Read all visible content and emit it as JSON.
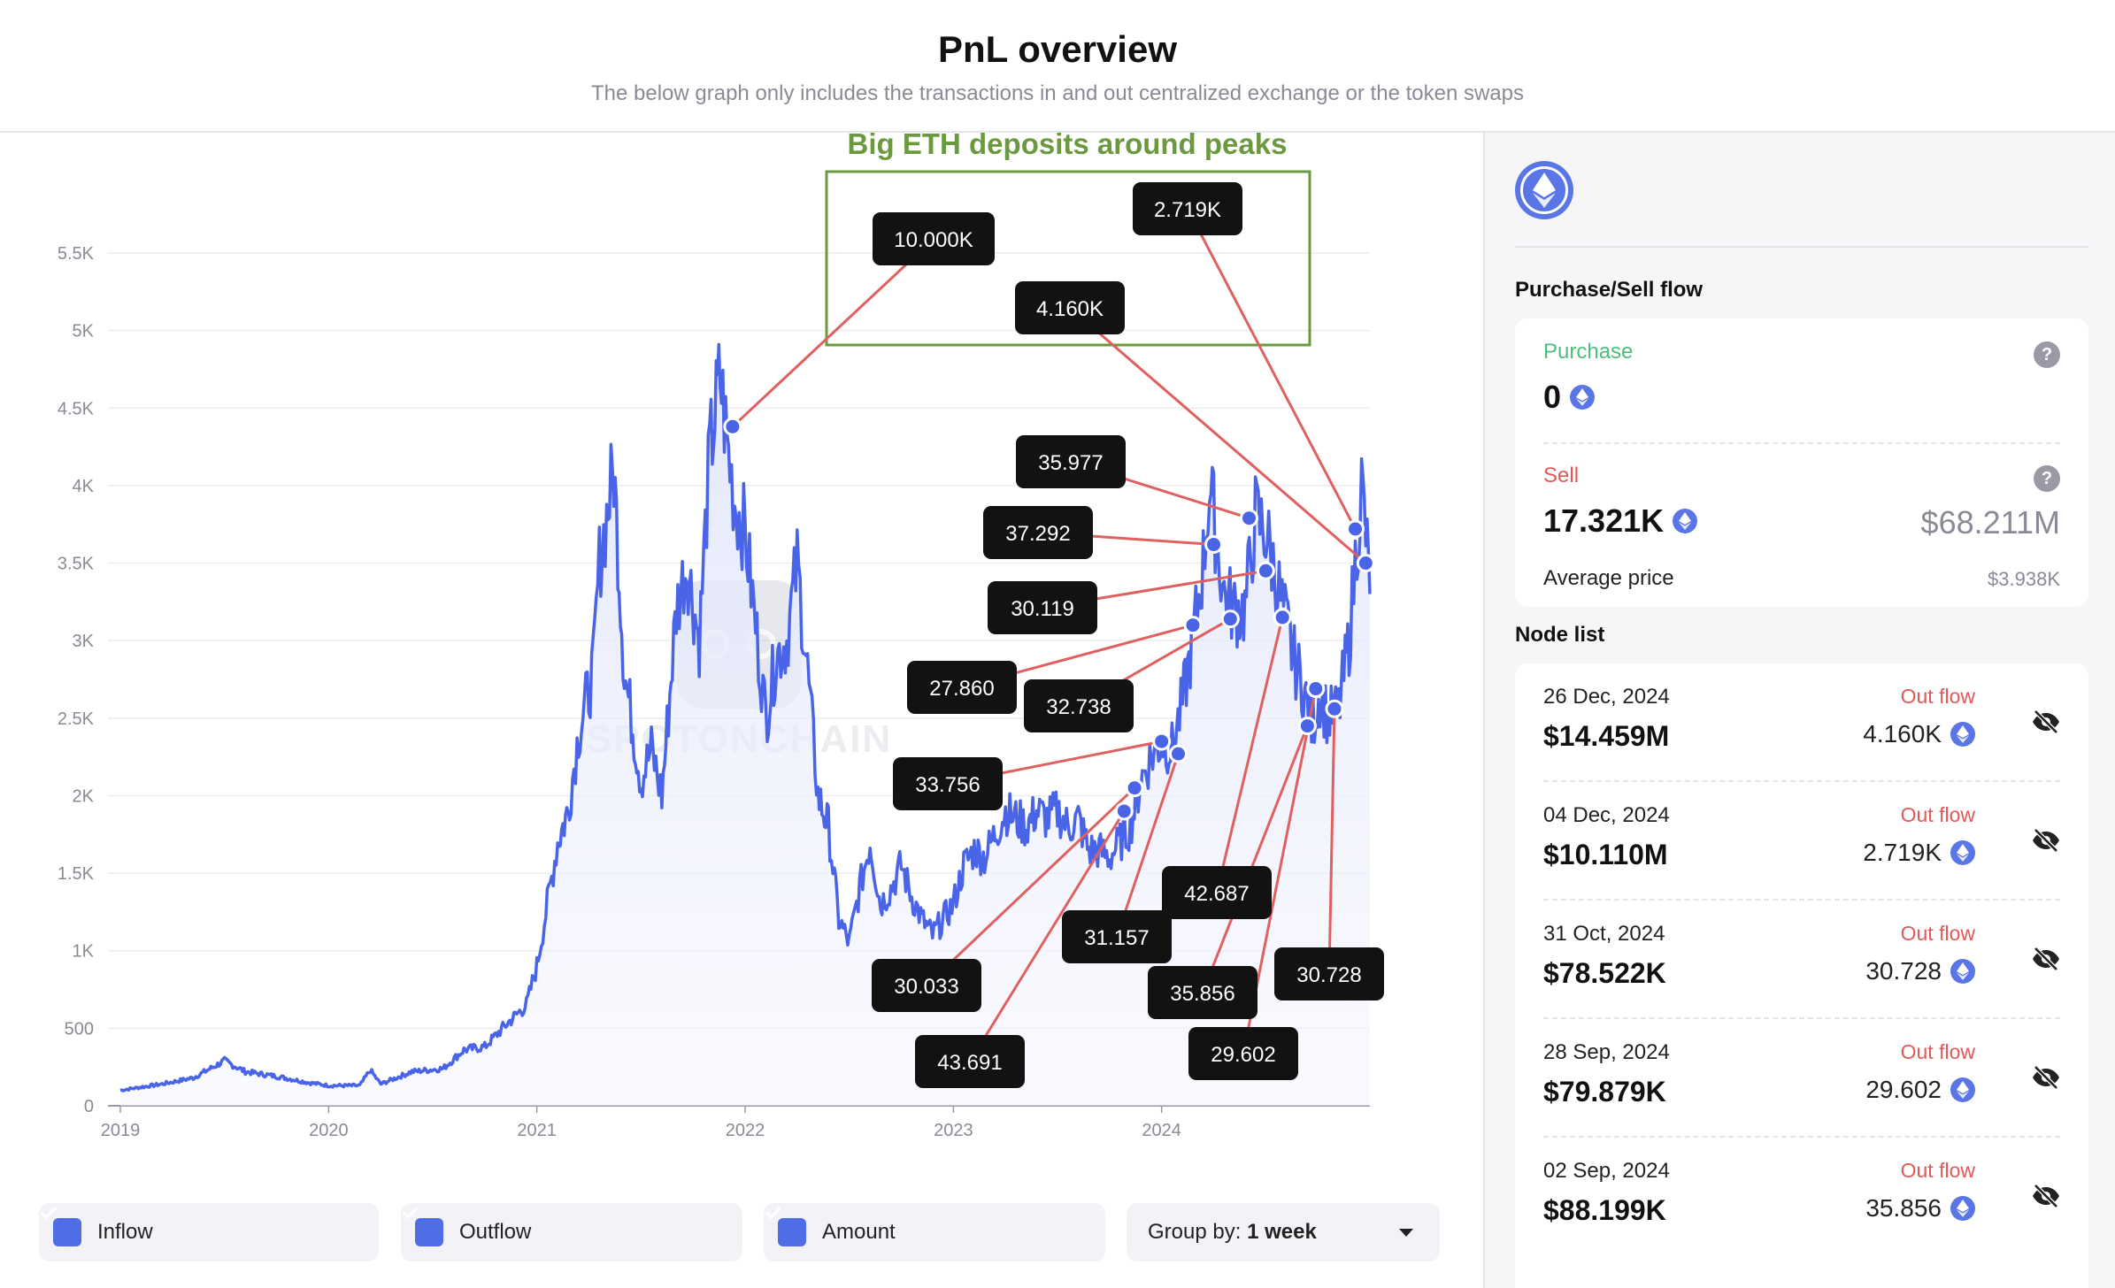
{
  "header": {
    "title": "PnL overview",
    "subtitle": "The below graph only includes the transactions in and out centralized exchange or the token swaps"
  },
  "annotation": {
    "text": "Big ETH deposits around peaks",
    "box_color": "#6b9a3e"
  },
  "watermark": "SPOTONCHAIN",
  "chart_data": {
    "type": "area",
    "title": "",
    "xlabel": "",
    "ylabel": "",
    "ylim": [
      0,
      5500
    ],
    "xlim": [
      2019,
      2025.0
    ],
    "y_ticks": [
      "0",
      "500",
      "1K",
      "1.5K",
      "2K",
      "2.5K",
      "3K",
      "3.5K",
      "4K",
      "4.5K",
      "5K",
      "5.5K"
    ],
    "y_tick_values": [
      0,
      500,
      1000,
      1500,
      2000,
      2500,
      3000,
      3500,
      4000,
      4500,
      5000,
      5500
    ],
    "x_ticks": [
      "2019",
      "2020",
      "2021",
      "2022",
      "2023",
      "2024"
    ],
    "x_tick_values": [
      2019,
      2020,
      2021,
      2022,
      2023,
      2024
    ],
    "line_color": "#4a64e8",
    "series_name": "Amount",
    "anchors": [
      [
        2019.0,
        100
      ],
      [
        2019.2,
        140
      ],
      [
        2019.35,
        180
      ],
      [
        2019.5,
        290
      ],
      [
        2019.6,
        220
      ],
      [
        2019.75,
        190
      ],
      [
        2019.9,
        150
      ],
      [
        2020.0,
        130
      ],
      [
        2020.15,
        130
      ],
      [
        2020.2,
        230
      ],
      [
        2020.25,
        140
      ],
      [
        2020.4,
        220
      ],
      [
        2020.55,
        240
      ],
      [
        2020.65,
        360
      ],
      [
        2020.75,
        380
      ],
      [
        2020.85,
        520
      ],
      [
        2020.95,
        650
      ],
      [
        2021.0,
        900
      ],
      [
        2021.05,
        1300
      ],
      [
        2021.1,
        1700
      ],
      [
        2021.15,
        1900
      ],
      [
        2021.2,
        2400
      ],
      [
        2021.27,
        2800
      ],
      [
        2021.3,
        3500
      ],
      [
        2021.37,
        4100
      ],
      [
        2021.42,
        2800
      ],
      [
        2021.5,
        2100
      ],
      [
        2021.55,
        2300
      ],
      [
        2021.6,
        2000
      ],
      [
        2021.67,
        3200
      ],
      [
        2021.72,
        3500
      ],
      [
        2021.78,
        3000
      ],
      [
        2021.83,
        4200
      ],
      [
        2021.88,
        4700
      ],
      [
        2021.92,
        4200
      ],
      [
        2021.95,
        3900
      ],
      [
        2022.0,
        3700
      ],
      [
        2022.05,
        3100
      ],
      [
        2022.1,
        2500
      ],
      [
        2022.15,
        2900
      ],
      [
        2022.2,
        3000
      ],
      [
        2022.25,
        3500
      ],
      [
        2022.3,
        2800
      ],
      [
        2022.35,
        2000
      ],
      [
        2022.4,
        1800
      ],
      [
        2022.45,
        1200
      ],
      [
        2022.5,
        1050
      ],
      [
        2022.55,
        1400
      ],
      [
        2022.6,
        1700
      ],
      [
        2022.65,
        1300
      ],
      [
        2022.7,
        1400
      ],
      [
        2022.75,
        1550
      ],
      [
        2022.8,
        1350
      ],
      [
        2022.85,
        1200
      ],
      [
        2022.9,
        1100
      ],
      [
        2022.95,
        1200
      ],
      [
        2023.0,
        1300
      ],
      [
        2023.05,
        1550
      ],
      [
        2023.1,
        1650
      ],
      [
        2023.15,
        1600
      ],
      [
        2023.2,
        1750
      ],
      [
        2023.25,
        1900
      ],
      [
        2023.3,
        1850
      ],
      [
        2023.35,
        1800
      ],
      [
        2023.4,
        1900
      ],
      [
        2023.45,
        1850
      ],
      [
        2023.5,
        1900
      ],
      [
        2023.55,
        1800
      ],
      [
        2023.6,
        1850
      ],
      [
        2023.65,
        1650
      ],
      [
        2023.7,
        1650
      ],
      [
        2023.75,
        1600
      ],
      [
        2023.8,
        1700
      ],
      [
        2023.85,
        1800
      ],
      [
        2023.9,
        2100
      ],
      [
        2023.95,
        2250
      ],
      [
        2024.0,
        2350
      ],
      [
        2024.05,
        2300
      ],
      [
        2024.1,
        2600
      ],
      [
        2024.15,
        3000
      ],
      [
        2024.2,
        3500
      ],
      [
        2024.23,
        4000
      ],
      [
        2024.27,
        3600
      ],
      [
        2024.3,
        3300
      ],
      [
        2024.35,
        3200
      ],
      [
        2024.4,
        3200
      ],
      [
        2024.45,
        3800
      ],
      [
        2024.5,
        3700
      ],
      [
        2024.55,
        3400
      ],
      [
        2024.6,
        3100
      ],
      [
        2024.63,
        2900
      ],
      [
        2024.68,
        2700
      ],
      [
        2024.72,
        2450
      ],
      [
        2024.76,
        2650
      ],
      [
        2024.8,
        2500
      ],
      [
        2024.85,
        2550
      ],
      [
        2024.9,
        3000
      ],
      [
        2024.93,
        3500
      ],
      [
        2024.96,
        4000
      ],
      [
        2024.98,
        3700
      ],
      [
        2025.0,
        3300
      ]
    ],
    "markers": [
      {
        "label": "10.000K",
        "x": 2021.94,
        "y": 4380
      },
      {
        "label": "4.160K",
        "x": 2024.98,
        "y": 3500
      },
      {
        "label": "2.719K",
        "x": 2024.93,
        "y": 3720
      },
      {
        "label": "35.977",
        "x": 2024.42,
        "y": 3790
      },
      {
        "label": "37.292",
        "x": 2024.25,
        "y": 3620
      },
      {
        "label": "30.119",
        "x": 2024.5,
        "y": 3450
      },
      {
        "label": "27.860",
        "x": 2024.15,
        "y": 3100
      },
      {
        "label": "32.738",
        "x": 2024.33,
        "y": 3140
      },
      {
        "label": "33.756",
        "x": 2024.0,
        "y": 2350
      },
      {
        "label": "30.033",
        "x": 2023.87,
        "y": 2050
      },
      {
        "label": "43.691",
        "x": 2023.82,
        "y": 1900
      },
      {
        "label": "31.157",
        "x": 2024.08,
        "y": 2270
      },
      {
        "label": "42.687",
        "x": 2024.58,
        "y": 3150
      },
      {
        "label": "35.856",
        "x": 2024.7,
        "y": 2450
      },
      {
        "label": "29.602",
        "x": 2024.74,
        "y": 2690
      },
      {
        "label": "30.728",
        "x": 2024.83,
        "y": 2560
      }
    ]
  },
  "controls": {
    "inflow": "Inflow",
    "outflow": "Outflow",
    "amount": "Amount",
    "group_by_label": "Group by:",
    "group_by_value": "1 week"
  },
  "sidebar": {
    "flow_title": "Purchase/Sell flow",
    "purchase_label": "Purchase",
    "purchase_value": "0",
    "sell_label": "Sell",
    "sell_value": "17.321K",
    "sell_usd": "$68.211M",
    "avg_price_label": "Average price",
    "avg_price_value": "$3.938K",
    "help_glyph": "?",
    "node_list_title": "Node list",
    "nodes": [
      {
        "date": "26 Dec, 2024",
        "usd": "$14.459M",
        "flow": "Out flow",
        "amount": "4.160K"
      },
      {
        "date": "04 Dec, 2024",
        "usd": "$10.110M",
        "flow": "Out flow",
        "amount": "2.719K"
      },
      {
        "date": "31 Oct, 2024",
        "usd": "$78.522K",
        "flow": "Out flow",
        "amount": "30.728"
      },
      {
        "date": "28 Sep, 2024",
        "usd": "$79.879K",
        "flow": "Out flow",
        "amount": "29.602"
      },
      {
        "date": "02 Sep, 2024",
        "usd": "$88.199K",
        "flow": "Out flow",
        "amount": "35.856"
      }
    ]
  },
  "colors": {
    "accent": "#4a64e8",
    "purchase": "#4cbf7e",
    "sell": "#e05a5a",
    "leader_line": "#e06060",
    "callout_bg": "#121212"
  }
}
